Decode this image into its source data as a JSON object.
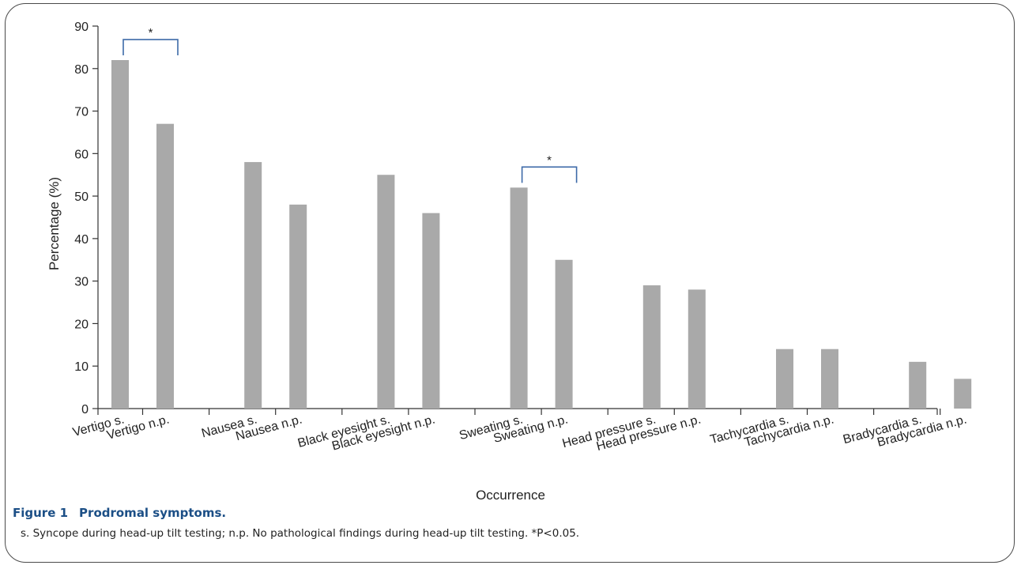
{
  "chart_data": {
    "type": "bar",
    "categories": [
      "Vertigo s.",
      "Vertigo n.p.",
      "Nausea s.",
      "Nausea n.p.",
      "Black eyesight s.",
      "Black eyesight n.p.",
      "Sweating s.",
      "Sweating n.p.",
      "Head pressure s.",
      "Head pressure n.p.",
      "Tachycardia s.",
      "Tachycardia n.p.",
      "Bradycardia s.",
      "Bradycardia n.p."
    ],
    "values": [
      82,
      67,
      58,
      48,
      55,
      46,
      52,
      35,
      29,
      28,
      14,
      14,
      11,
      7
    ],
    "xlabel": "Occurrence",
    "ylabel": "Percentage (%)",
    "ylim": [
      0,
      90
    ],
    "yticks": [
      0,
      10,
      20,
      30,
      40,
      50,
      60,
      70,
      80,
      90
    ],
    "bar_color": "#a9a9a9",
    "bracket_color": "#3d6aa8",
    "grid": false,
    "annotations": [
      {
        "from": "Vertigo s.",
        "to": "Vertigo n.p.",
        "label": "*"
      },
      {
        "from": "Sweating s.",
        "to": "Sweating n.p.",
        "label": "*"
      }
    ]
  },
  "caption": {
    "figure_number": "Figure 1",
    "title": "Prodromal symptoms.",
    "note": "s. Syncope during head-up tilt testing; n.p. No pathological findings during head-up tilt testing. *P<0.05."
  }
}
